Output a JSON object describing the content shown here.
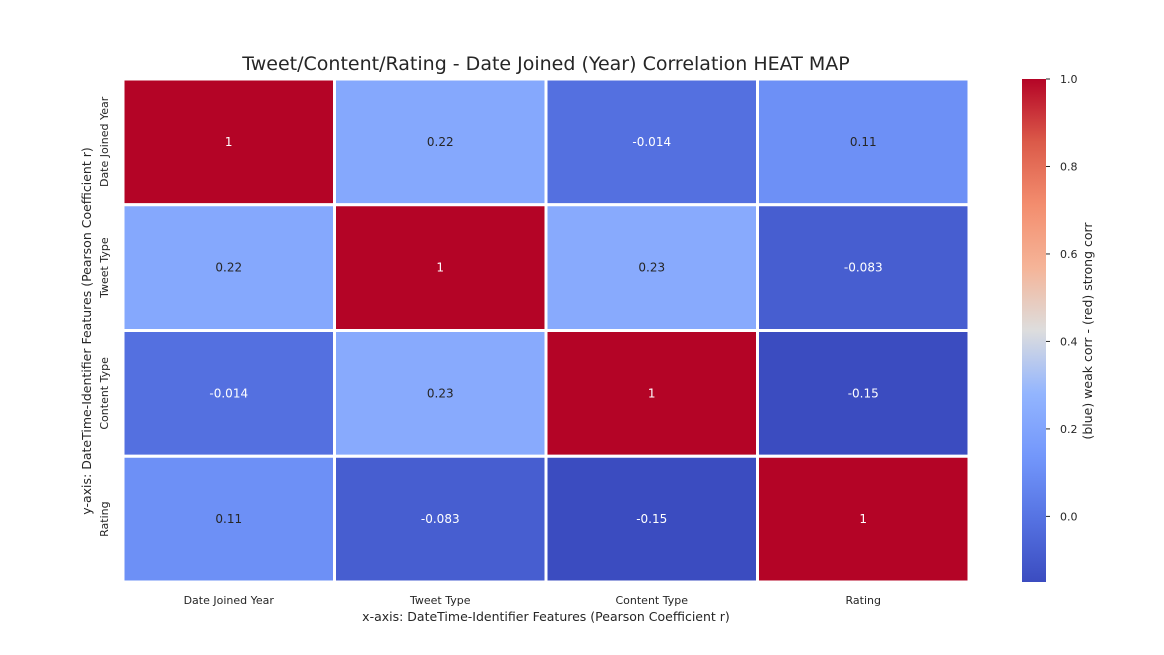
{
  "chart_data": {
    "type": "heatmap",
    "title": "Tweet/Content/Rating - Date Joined (Year) Correlation HEAT MAP",
    "xlabel": "x-axis: DateTime-Identifier Features (Pearson Coefficient r)",
    "ylabel": "y-axis: DateTime-Identifier Features (Pearson Coefficient r)",
    "x_categories": [
      "Date Joined Year",
      "Tweet Type",
      "Content Type",
      "Rating"
    ],
    "y_categories": [
      "Date Joined Year",
      "Tweet Type",
      "Content Type",
      "Rating"
    ],
    "values": [
      [
        1,
        0.22,
        -0.014,
        0.11
      ],
      [
        0.22,
        1,
        0.23,
        -0.083
      ],
      [
        -0.014,
        0.23,
        1,
        -0.15
      ],
      [
        0.11,
        -0.083,
        -0.15,
        1
      ]
    ],
    "value_labels": [
      [
        "1",
        "0.22",
        "-0.014",
        "0.11"
      ],
      [
        "0.22",
        "1",
        "0.23",
        "-0.083"
      ],
      [
        "-0.014",
        "0.23",
        "1",
        "-0.15"
      ],
      [
        "0.11",
        "-0.083",
        "-0.15",
        "1"
      ]
    ],
    "colormap": "coolwarm",
    "colorbar": {
      "label": "(blue) weak corr - (red) strong corr",
      "range": [
        -0.15,
        1.0
      ],
      "ticks": [
        "0.0",
        "0.2",
        "0.4",
        "0.6",
        "0.8",
        "1.0"
      ]
    },
    "grid": false,
    "legend": "colorbar-right"
  }
}
